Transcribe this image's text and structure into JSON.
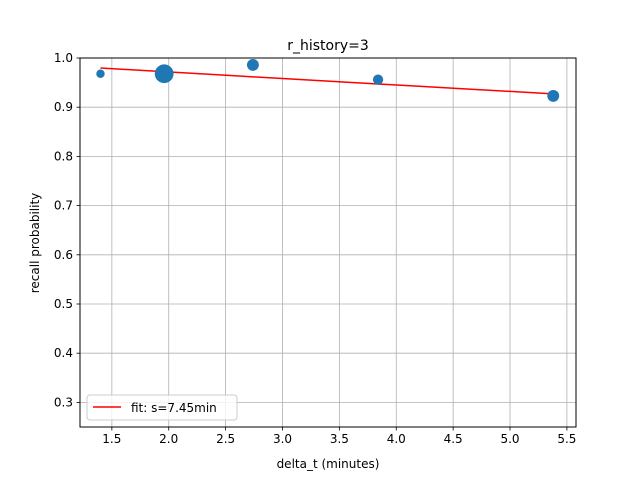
{
  "chart_data": {
    "type": "scatter",
    "title": "r_history=3",
    "xlabel": "delta_t (minutes)",
    "ylabel": "recall probability",
    "xlim": [
      1.22,
      5.58
    ],
    "ylim": [
      0.25,
      1.0
    ],
    "xticks": [
      1.5,
      2.0,
      2.5,
      3.0,
      3.5,
      4.0,
      4.5,
      5.0,
      5.5
    ],
    "xtick_labels": [
      "1.5",
      "2.0",
      "2.5",
      "3.0",
      "3.5",
      "4.0",
      "4.5",
      "5.0",
      "5.5"
    ],
    "yticks": [
      0.3,
      0.4,
      0.5,
      0.6,
      0.7,
      0.8,
      0.9,
      1.0
    ],
    "ytick_labels": [
      "0.3",
      "0.4",
      "0.5",
      "0.6",
      "0.7",
      "0.8",
      "0.9",
      "1.0"
    ],
    "grid": true,
    "legend_position": "lower-left",
    "legend": {
      "label": "fit: s=7.45min"
    },
    "points": [
      {
        "x": 1.4,
        "y": 0.968,
        "weight": 1.0
      },
      {
        "x": 1.96,
        "y": 0.968,
        "weight": 5.0
      },
      {
        "x": 2.74,
        "y": 0.986,
        "weight": 2.0
      },
      {
        "x": 3.84,
        "y": 0.956,
        "weight": 1.5
      },
      {
        "x": 5.38,
        "y": 0.923,
        "weight": 2.0
      }
    ],
    "fit_line": {
      "x": [
        1.4,
        1.8,
        2.2,
        2.6,
        3.0,
        3.4,
        3.8,
        4.2,
        4.6,
        5.0,
        5.38
      ],
      "y": [
        0.9796,
        0.9743,
        0.969,
        0.9636,
        0.9583,
        0.953,
        0.9477,
        0.9425,
        0.9373,
        0.9321,
        0.9271
      ]
    },
    "colors": {
      "points": "#1f77b4",
      "fit": "#ff0000",
      "grid": "#b0b0b0"
    }
  }
}
